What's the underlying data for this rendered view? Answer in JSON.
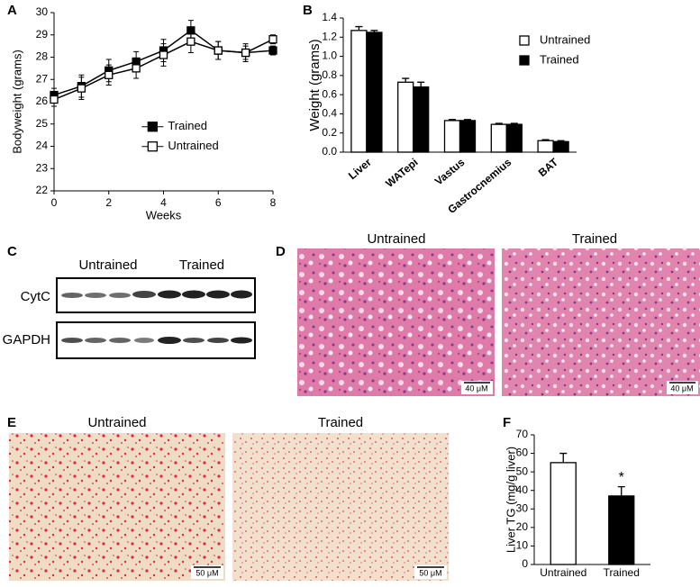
{
  "chart_data": [
    {
      "type": "line",
      "panel": "A",
      "xlabel": "Weeks",
      "ylabel": "Bodyweight (grams)",
      "x": [
        0,
        1,
        2,
        3,
        4,
        5,
        6,
        7,
        8
      ],
      "series": [
        {
          "name": "Trained",
          "color": "#000000",
          "values": [
            26.3,
            26.7,
            27.4,
            27.8,
            28.3,
            29.2,
            28.3,
            28.2,
            28.3
          ],
          "errors": [
            0.3,
            0.5,
            0.5,
            0.45,
            0.5,
            0.45,
            0.4,
            0.3,
            0.2
          ]
        },
        {
          "name": "Untrained",
          "color": "#ffffff",
          "values": [
            26.1,
            26.6,
            27.2,
            27.5,
            28.1,
            28.7,
            28.3,
            28.2,
            28.8
          ],
          "errors": [
            0.3,
            0.5,
            0.45,
            0.45,
            0.5,
            0.5,
            0.4,
            0.4,
            0.2
          ]
        }
      ],
      "xlim": [
        0,
        8
      ],
      "xticks": [
        0,
        2,
        4,
        6,
        8
      ],
      "ylim": [
        22,
        30
      ],
      "yticks": [
        22,
        23,
        24,
        25,
        26,
        27,
        28,
        29,
        30
      ],
      "legend": "center right",
      "grid": false
    },
    {
      "type": "bar",
      "panel": "B",
      "ylabel": "Weight (grams)",
      "categories": [
        "Liver",
        "WATepi",
        "Vastus",
        "Gastrocnemius",
        "BAT"
      ],
      "series": [
        {
          "name": "Untrained",
          "color": "#ffffff",
          "values": [
            1.27,
            0.73,
            0.33,
            0.29,
            0.12
          ],
          "errors": [
            0.04,
            0.04,
            0.01,
            0.01,
            0.01
          ]
        },
        {
          "name": "Trained",
          "color": "#000000",
          "values": [
            1.25,
            0.68,
            0.33,
            0.29,
            0.11
          ],
          "errors": [
            0.02,
            0.05,
            0.01,
            0.01,
            0.01
          ]
        }
      ],
      "ylim": [
        0,
        1.4
      ],
      "yticks": [
        {
          "value": 0,
          "label": "0.0"
        },
        0.2,
        0.4,
        0.6,
        0.8,
        {
          "value": 1,
          "label": "1.0"
        },
        1.2,
        1.4
      ],
      "legend": "upper right",
      "grid": false
    },
    {
      "type": "bar",
      "panel": "F",
      "ylabel": "Liver TG (mg/g liver)",
      "categories": [
        "Untrained",
        "Trained"
      ],
      "values": [
        55,
        37
      ],
      "errors": [
        5,
        5
      ],
      "colors": [
        "#ffffff",
        "#000000"
      ],
      "ylim": [
        0,
        70
      ],
      "yticks": [
        0,
        10,
        20,
        30,
        40,
        50,
        60,
        70
      ],
      "annotations": [
        {
          "text": "*",
          "x": "Trained"
        }
      ],
      "grid": false
    }
  ],
  "western_blot": {
    "panel": "C",
    "groups": [
      "Untrained",
      "Trained"
    ],
    "rows": [
      "CytC",
      "GAPDH"
    ]
  },
  "he_stain": {
    "panel": "D",
    "titles": [
      "Untrained",
      "Trained"
    ],
    "scale_bar": "40 μM"
  },
  "oil_red_o": {
    "panel": "E",
    "titles": [
      "Untrained",
      "Trained"
    ],
    "scale_bar": "50 μM"
  }
}
